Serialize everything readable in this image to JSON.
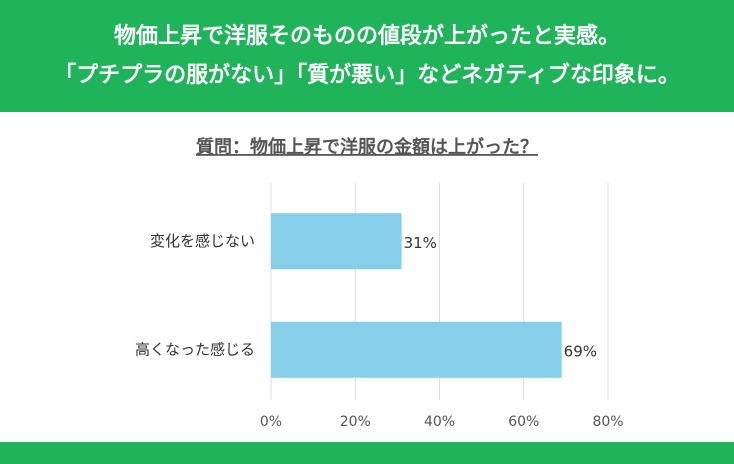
{
  "header": {
    "lines": [
      "物価上昇で洋服そのものの値段が上がったと実感。",
      "「プチプラの服がない」「質が悪い」などネガティブな印象に。"
    ]
  },
  "chart_data": {
    "type": "hbar",
    "title": "質問：物価上昇で洋服の金額は上がった？",
    "categories": [
      "変化を感じない",
      "高くなった感じる"
    ],
    "values": [
      31,
      69
    ],
    "value_labels": [
      "31%",
      "69%"
    ],
    "color": "#87ceeb",
    "xlim": [
      0,
      80
    ],
    "xticks": [
      {
        "value": 0,
        "label": "0%"
      },
      {
        "value": 20,
        "label": "20%"
      },
      {
        "value": 40,
        "label": "40%"
      },
      {
        "value": 60,
        "label": "60%"
      },
      {
        "value": 80,
        "label": "80%"
      }
    ],
    "grid": true
  }
}
